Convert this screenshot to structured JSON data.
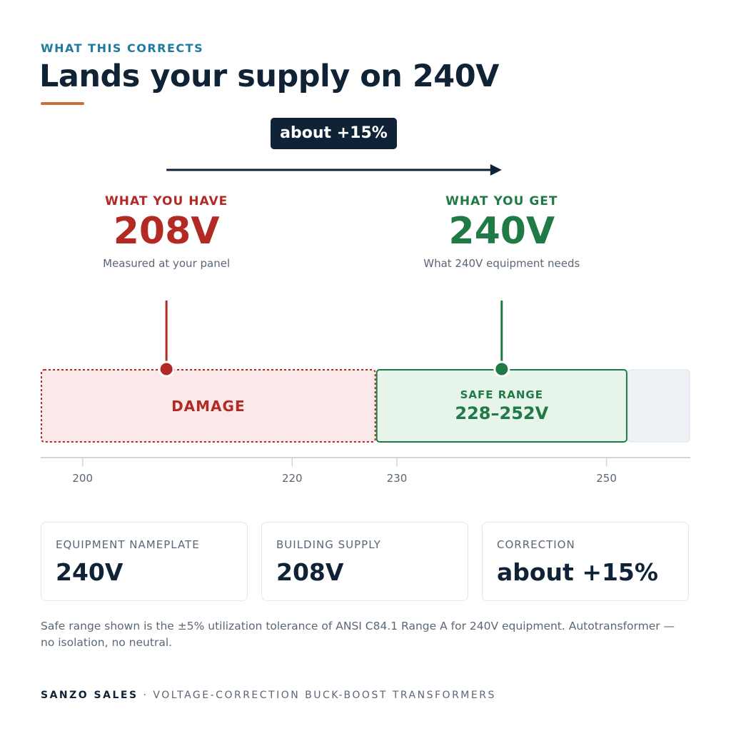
{
  "eyebrow": "WHAT THIS CORRECTS",
  "title": "Lands your supply on 240V",
  "badge": "about +15%",
  "have": {
    "label": "WHAT YOU HAVE",
    "value_text": "208V",
    "note": "Measured at your panel",
    "value": 208
  },
  "get": {
    "label": "WHAT YOU GET",
    "value_text": "240V",
    "note": "What 240V equipment needs",
    "value": 240
  },
  "scale": {
    "xlim": [
      196,
      258
    ],
    "xticks": [
      200,
      220,
      230,
      250
    ],
    "zones": [
      {
        "label": "DAMAGE",
        "from": 196,
        "to": 228
      },
      {
        "label": "SAFE RANGE",
        "range_text": "228–252V",
        "from": 228,
        "to": 252
      },
      {
        "from": 252,
        "to": 258
      }
    ]
  },
  "cards": [
    {
      "label": "EQUIPMENT NAMEPLATE",
      "value": "240V"
    },
    {
      "label": "BUILDING SUPPLY",
      "value": "208V"
    },
    {
      "label": "CORRECTION",
      "value": "about +15%"
    }
  ],
  "footnote": "Safe range shown is the ±5% utilization tolerance of ANSI C84.1 Range A for 240V equipment. Autotransformer — no isolation, no neutral.",
  "footer": {
    "brand": "SANZO SALES",
    "sep": "·",
    "tagline": "VOLTAGE-CORRECTION BUCK-BOOST TRANSFORMERS"
  }
}
